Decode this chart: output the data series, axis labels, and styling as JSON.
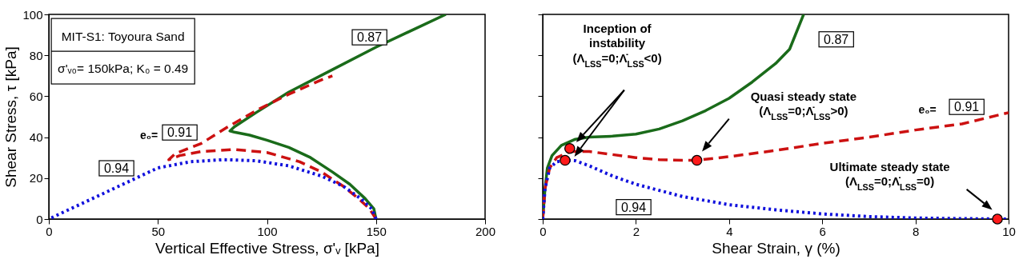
{
  "chart_data": [
    {
      "type": "line",
      "xlabel": "Vertical Effective Stress, σ'ᵥ [kPa]",
      "ylabel": "Shear Stress, τ [kPa]",
      "xlim": [
        0,
        200
      ],
      "xticks": [
        0,
        50,
        100,
        150,
        200
      ],
      "ylim": [
        0,
        100
      ],
      "yticks": [
        0,
        20,
        40,
        60,
        80,
        100
      ],
      "annotations": [
        "MIT-S1: Toyoura Sand",
        "σ'ᵥ₀= 150kPa; K₀ = 0.49",
        "e₀="
      ],
      "series": [
        {
          "name": "0.87",
          "color": "#1a6b1a",
          "line_style": "solid",
          "x": [
            150,
            149,
            145,
            138,
            130,
            120,
            110,
            100,
            92,
            85,
            83,
            85,
            95,
            110,
            130,
            150,
            170,
            182
          ],
          "values": [
            0,
            5,
            10,
            17,
            23,
            30,
            35,
            38.5,
            41,
            42.5,
            43,
            45,
            52,
            62,
            73,
            84,
            94,
            100
          ]
        },
        {
          "name": "0.91",
          "color": "#cc1111",
          "line_style": "dashed",
          "x": [
            150,
            147,
            142,
            135,
            125,
            115,
            100,
            85,
            70,
            60,
            55,
            58,
            70,
            82,
            95,
            110,
            125,
            130
          ],
          "values": [
            0,
            5,
            10,
            16,
            23,
            28,
            32.5,
            34,
            33,
            31,
            29,
            32,
            37,
            45,
            53,
            61,
            68,
            70
          ]
        },
        {
          "name": "0.94",
          "color": "#1111dd",
          "line_style": "dotted",
          "x": [
            150,
            148,
            143,
            135,
            125,
            110,
            95,
            80,
            65,
            50,
            40,
            30,
            20,
            10,
            0
          ],
          "values": [
            0,
            5,
            10,
            16,
            21,
            26,
            28.5,
            29,
            28,
            25,
            20,
            15,
            10,
            5,
            0
          ]
        }
      ]
    },
    {
      "type": "line",
      "xlabel": "Shear Strain, γ (%)",
      "tick_labels": "x",
      "xlim": [
        0,
        10
      ],
      "xticks": [
        0,
        2,
        4,
        6,
        8,
        10
      ],
      "ylim": [
        0,
        100
      ],
      "yticks": [
        0,
        20,
        40,
        60,
        80,
        100
      ],
      "annotations": [
        "Inception of\ninstability\n(Λ$_{LSS}$=0;Λ̇$_{LSS}$<0)",
        "Quasi steady state\n(Λ$_{LSS}$=0;Λ̇$_{LSS}$>0)",
        "Ultimate steady state\n(Λ$_{LSS}$=0;Λ̇$_{LSS}$=0)",
        "e₀="
      ],
      "series": [
        {
          "name": "0.87",
          "color": "#1a6b1a",
          "line_style": "solid",
          "x": [
            0,
            0.05,
            0.1,
            0.2,
            0.4,
            0.7,
            1,
            1.5,
            2,
            2.5,
            3,
            3.5,
            4,
            4.5,
            5,
            5.3,
            5.6
          ],
          "values": [
            0,
            15,
            25,
            31,
            36,
            39,
            40,
            40.5,
            41.5,
            44,
            48,
            53,
            59,
            67,
            76,
            83,
            100
          ]
        },
        {
          "name": "0.91",
          "color": "#cc1111",
          "line_style": "dashed",
          "x": [
            0,
            0.05,
            0.15,
            0.3,
            0.6,
            1,
            1.5,
            2,
            2.5,
            3,
            3.3,
            4,
            5,
            6,
            7,
            8,
            9,
            10
          ],
          "values": [
            0,
            15,
            25,
            30,
            33,
            33,
            31.5,
            30,
            29,
            28.7,
            28.7,
            30.5,
            33.5,
            37,
            40,
            43.5,
            46.5,
            52
          ]
        },
        {
          "name": "0.94",
          "color": "#1111dd",
          "line_style": "dotted",
          "x": [
            0,
            0.05,
            0.15,
            0.3,
            0.5,
            0.7,
            1,
            1.5,
            2,
            2.5,
            3,
            4,
            5,
            6,
            7,
            8,
            9,
            10
          ],
          "values": [
            0,
            15,
            25,
            28,
            28.7,
            28.5,
            26,
            21,
            17,
            14,
            11,
            7,
            4.5,
            2.5,
            1.2,
            0.5,
            0.2,
            0
          ]
        },
        {
          "type": "scatter",
          "color": "#ff1a1a",
          "marker": "circle",
          "x": [
            0.58,
            0.48,
            3.31,
            9.76
          ],
          "values": [
            34.5,
            28.7,
            28.7,
            0
          ]
        }
      ]
    }
  ]
}
